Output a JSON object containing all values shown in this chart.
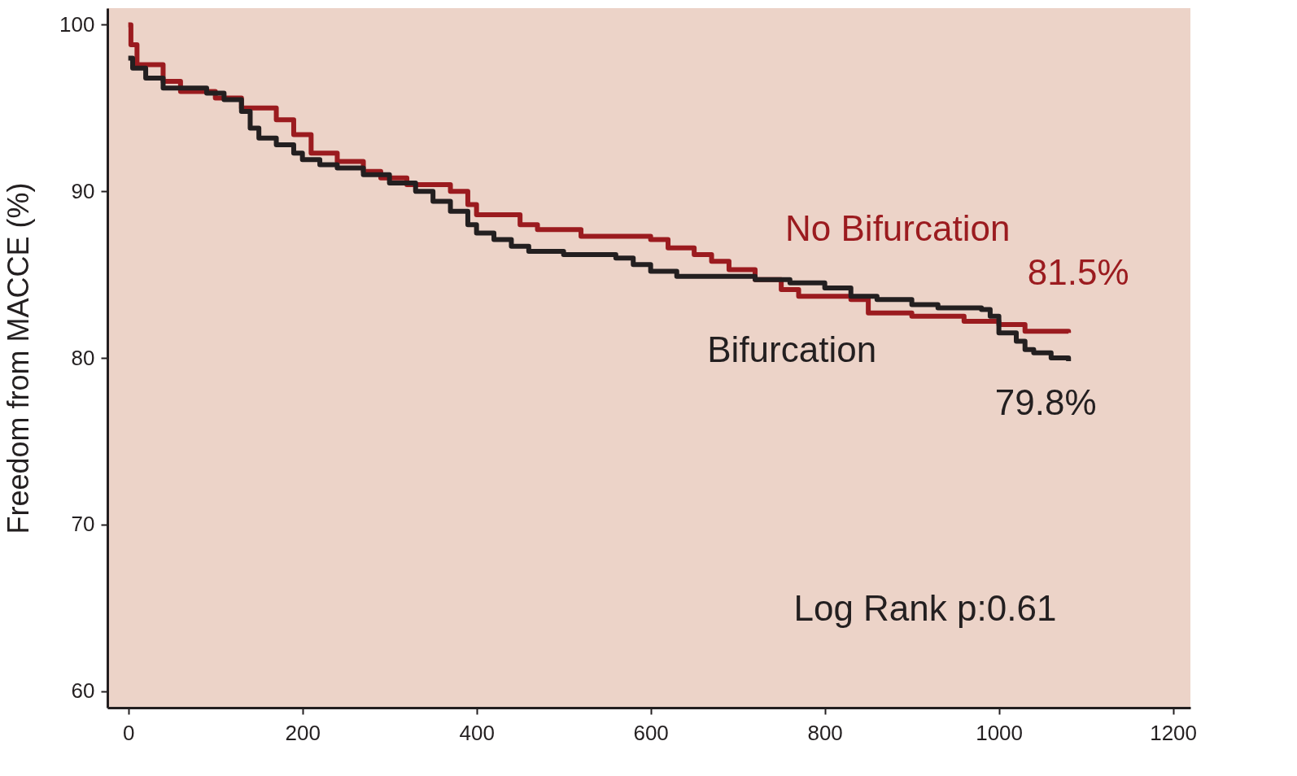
{
  "chart_data": {
    "type": "step",
    "ylabel": "Freedom from MACCE (%)",
    "xlim": [
      -24,
      1220
    ],
    "xticks": [
      0,
      200,
      400,
      600,
      800,
      1000,
      1200
    ],
    "ylim": [
      59,
      101
    ],
    "yticks": [
      60,
      70,
      80,
      90,
      100
    ],
    "grid": false,
    "line_style": "solid",
    "marker": "none",
    "series": [
      {
        "name": "No Bifurcation",
        "color": "#9b1b1f",
        "x": [
          0,
          3,
          10,
          40,
          60,
          100,
          130,
          170,
          190,
          210,
          240,
          270,
          290,
          320,
          370,
          390,
          400,
          450,
          470,
          520,
          600,
          620,
          650,
          670,
          690,
          720,
          750,
          770,
          830,
          850,
          900,
          960,
          1000,
          1030,
          1080
        ],
        "values": [
          100,
          98.8,
          97.6,
          96.6,
          96,
          95.6,
          95,
          94.3,
          93.4,
          92.3,
          91.8,
          91.2,
          90.8,
          90.4,
          90,
          89.2,
          88.6,
          88,
          87.7,
          87.3,
          87.1,
          86.6,
          86.2,
          85.8,
          85.3,
          84.7,
          84.1,
          83.7,
          83.5,
          82.7,
          82.5,
          82.2,
          82,
          81.6,
          81.5
        ]
      },
      {
        "name": "Bifurcation",
        "color": "#231f20",
        "x": [
          0,
          5,
          20,
          40,
          90,
          110,
          130,
          140,
          150,
          170,
          190,
          200,
          220,
          240,
          270,
          300,
          330,
          350,
          370,
          390,
          400,
          420,
          440,
          460,
          500,
          560,
          580,
          600,
          630,
          720,
          760,
          800,
          830,
          860,
          900,
          930,
          980,
          990,
          1000,
          1020,
          1030,
          1040,
          1060,
          1080
        ],
        "values": [
          98,
          97.4,
          96.8,
          96.2,
          95.9,
          95.5,
          94.8,
          93.8,
          93.2,
          92.8,
          92.3,
          91.9,
          91.6,
          91.4,
          91,
          90.5,
          90,
          89.4,
          88.8,
          88,
          87.5,
          87.1,
          86.7,
          86.4,
          86.2,
          86,
          85.6,
          85.2,
          84.9,
          84.7,
          84.5,
          84.2,
          83.7,
          83.5,
          83.2,
          83,
          82.9,
          82.5,
          81.5,
          81,
          80.5,
          80.3,
          80,
          79.8
        ]
      }
    ],
    "annotations": [
      {
        "text": "81.5%",
        "x": 1080,
        "y": 81.5
      },
      {
        "text": "79.8%",
        "x": 1080,
        "y": 79.8
      },
      "Log Rank p:0.61"
    ]
  }
}
